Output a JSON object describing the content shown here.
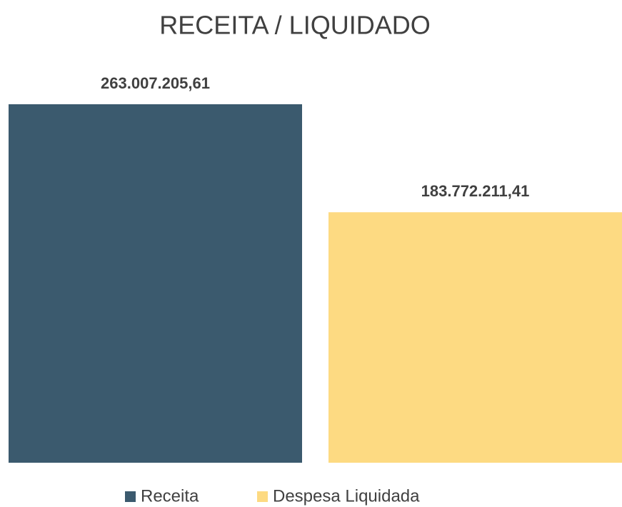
{
  "chart_data": {
    "type": "bar",
    "title": "RECEITA / LIQUIDADO",
    "series": [
      {
        "name": "Receita",
        "color": "#3b5a6e",
        "values": [
          263007205.61
        ],
        "value_labels": [
          "263.007.205,61"
        ]
      },
      {
        "name": "Despesa Liquidada",
        "color": "#fdda82",
        "values": [
          183772211.41
        ],
        "value_labels": [
          "183.772.211,41"
        ]
      }
    ]
  }
}
